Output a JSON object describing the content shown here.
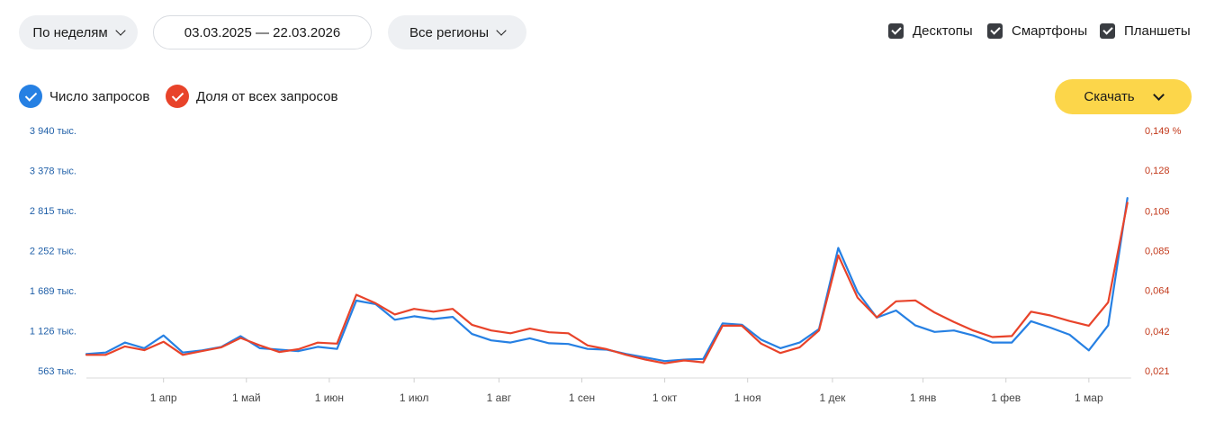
{
  "filters": {
    "period_label": "По неделям",
    "date_range": "03.03.2025 — 22.03.2026",
    "region_label": "Все регионы"
  },
  "devices": [
    {
      "label": "Десктопы",
      "checked": true
    },
    {
      "label": "Смартфоны",
      "checked": true
    },
    {
      "label": "Планшеты",
      "checked": true
    }
  ],
  "legend": {
    "requests_label": "Число запросов",
    "share_label": "Доля от всех запросов"
  },
  "download_label": "Скачать",
  "colors": {
    "requests": "#2680e3",
    "share": "#e8432a",
    "left_axis_text": "#1f5fa8",
    "right_axis_text": "#c33a1c",
    "download_bg": "#fcd64a"
  },
  "chart_data": {
    "type": "line",
    "x_tick_labels": [
      "1 апр",
      "1 май",
      "1 июн",
      "1 июл",
      "1 авг",
      "1 сен",
      "1 окт",
      "1 ноя",
      "1 дек",
      "1 янв",
      "1 фев",
      "1 мар"
    ],
    "x_tick_week_index": [
      4,
      8.3,
      12.6,
      17,
      21.4,
      25.7,
      30,
      34.3,
      38.7,
      43.4,
      47.7,
      52
    ],
    "left_axis": {
      "tick_labels": [
        "563 тыс.",
        "1 126 тыс.",
        "1 689 тыс.",
        "2 252 тыс.",
        "2 815 тыс.",
        "3 378 тыс.",
        "3 940 тыс."
      ],
      "tick_values": [
        563,
        1126,
        1689,
        2252,
        2815,
        3378,
        3940
      ],
      "unit": "тыс."
    },
    "right_axis": {
      "tick_labels": [
        "0,021",
        "0,042",
        "0,064",
        "0,085",
        "0,106",
        "0,128",
        "0,149 %"
      ],
      "tick_values": [
        0.021,
        0.042,
        0.064,
        0.085,
        0.106,
        0.128,
        0.149
      ]
    },
    "series": [
      {
        "name": "Число запросов",
        "axis": "left",
        "values": [
          800,
          820,
          960,
          880,
          1060,
          820,
          850,
          900,
          1050,
          880,
          860,
          840,
          900,
          870,
          1550,
          1500,
          1280,
          1330,
          1290,
          1320,
          1080,
          990,
          960,
          1020,
          950,
          940,
          870,
          860,
          800,
          750,
          700,
          720,
          730,
          1230,
          1210,
          1000,
          880,
          960,
          1150,
          2290,
          1670,
          1310,
          1410,
          1200,
          1110,
          1130,
          1060,
          960,
          960,
          1260,
          1170,
          1070,
          850,
          1200,
          2990
        ]
      },
      {
        "name": "Доля от всех запросов",
        "axis": "right",
        "values": [
          0.0295,
          0.0295,
          0.034,
          0.032,
          0.0365,
          0.0295,
          0.0315,
          0.0335,
          0.0385,
          0.0345,
          0.031,
          0.0325,
          0.036,
          0.0355,
          0.0615,
          0.057,
          0.051,
          0.054,
          0.0525,
          0.054,
          0.0455,
          0.0425,
          0.041,
          0.0435,
          0.0415,
          0.041,
          0.0345,
          0.0325,
          0.0295,
          0.027,
          0.025,
          0.0265,
          0.0255,
          0.045,
          0.045,
          0.0355,
          0.0305,
          0.0335,
          0.0425,
          0.0825,
          0.06,
          0.0495,
          0.058,
          0.0585,
          0.052,
          0.047,
          0.0425,
          0.039,
          0.0395,
          0.0525,
          0.0505,
          0.0475,
          0.045,
          0.0575,
          0.1105
        ]
      }
    ],
    "grid": false,
    "legend_position": "top-left"
  }
}
